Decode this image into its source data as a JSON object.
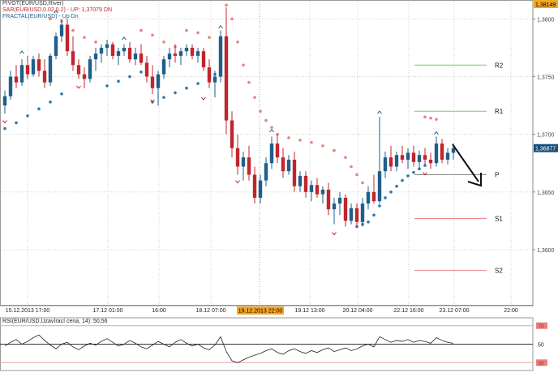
{
  "legend": {
    "pivot": "PIVOT(EUR/USD,River)",
    "sar": "SAR(EUR/USD,0.02,0.2) - UP: 1,37079  DN",
    "fractal": "FRACTAL(EUR/USD) - Up  Dn"
  },
  "colors": {
    "bull": "#1f5f8b",
    "bear": "#c0262c",
    "sar_up": "#2b7aa8",
    "sar_dn": "#e8837f",
    "r_line": "#6fcf6f",
    "s_line": "#e88888",
    "grid": "#d0d0d0",
    "highlight_bg": "#f5a623",
    "price_box": "#1a4f7a",
    "arrow": "#111111"
  },
  "rsi": {
    "label": "RSI(EUR/USD,Uzavírací cena, 14): 50,56",
    "levels": [
      "70",
      "50",
      "30"
    ]
  },
  "chart_data": {
    "type": "candlestick",
    "ylim": [
      1.3555,
      1.3815
    ],
    "y_ticks": [
      {
        "value": 1.3814,
        "label": "1,38149"
      },
      {
        "value": 1.38,
        "label": "1,3800"
      },
      {
        "value": 1.375,
        "label": "1,3750"
      },
      {
        "value": 1.37,
        "label": "1,3700"
      },
      {
        "value": 1.3688,
        "label": "1,36877"
      },
      {
        "value": 1.365,
        "label": "1,3650"
      },
      {
        "value": 1.36,
        "label": "1,3600"
      }
    ],
    "current_price_label": "1,36877",
    "top_price_label": "1,38149",
    "x_labels": [
      "15.12.2013 17:00",
      "17.12 01:00",
      "16:00",
      "18.12 07:00",
      "19.12 13:00",
      "20.12 04:00",
      "22.12 16:00",
      "23.12 07:00",
      "22:00"
    ],
    "highlighted_x_label": "19.12.2013 22:00",
    "pivot_levels": [
      {
        "name": "R2",
        "value": 1.376
      },
      {
        "name": "R1",
        "value": 1.372
      },
      {
        "name": "P",
        "value": 1.3665
      },
      {
        "name": "S1",
        "value": 1.3627
      },
      {
        "name": "S2",
        "value": 1.3582
      }
    ],
    "candles": [
      [
        1.3725,
        1.3738,
        1.3718,
        1.3733
      ],
      [
        1.3733,
        1.3755,
        1.373,
        1.375
      ],
      [
        1.375,
        1.376,
        1.374,
        1.3745
      ],
      [
        1.3745,
        1.3765,
        1.3742,
        1.376
      ],
      [
        1.376,
        1.3768,
        1.3748,
        1.3752
      ],
      [
        1.3752,
        1.3768,
        1.375,
        1.3765
      ],
      [
        1.3765,
        1.377,
        1.375,
        1.3755
      ],
      [
        1.3755,
        1.3765,
        1.374,
        1.3745
      ],
      [
        1.3745,
        1.377,
        1.3742,
        1.3768
      ],
      [
        1.3768,
        1.3788,
        1.3765,
        1.3785
      ],
      [
        1.3785,
        1.38,
        1.378,
        1.3795
      ],
      [
        1.3795,
        1.38,
        1.3768,
        1.3772
      ],
      [
        1.3772,
        1.3785,
        1.3755,
        1.376
      ],
      [
        1.376,
        1.3765,
        1.3748,
        1.3752
      ],
      [
        1.3752,
        1.3758,
        1.374,
        1.3748
      ],
      [
        1.3748,
        1.3768,
        1.3745,
        1.3765
      ],
      [
        1.3765,
        1.3775,
        1.3755,
        1.377
      ],
      [
        1.377,
        1.3778,
        1.3762,
        1.3775
      ],
      [
        1.3775,
        1.3782,
        1.3768,
        1.3778
      ],
      [
        1.3778,
        1.378,
        1.3765,
        1.3768
      ],
      [
        1.3768,
        1.3775,
        1.376,
        1.3772
      ],
      [
        1.3772,
        1.3778,
        1.3768,
        1.3775
      ],
      [
        1.3775,
        1.378,
        1.3762,
        1.3765
      ],
      [
        1.3765,
        1.3775,
        1.376,
        1.377
      ],
      [
        1.377,
        1.3778,
        1.376,
        1.3762
      ],
      [
        1.3762,
        1.3768,
        1.3745,
        1.375
      ],
      [
        1.375,
        1.376,
        1.3735,
        1.374
      ],
      [
        1.374,
        1.3755,
        1.3725,
        1.3752
      ],
      [
        1.3752,
        1.3768,
        1.3748,
        1.3765
      ],
      [
        1.3765,
        1.3775,
        1.3758,
        1.377
      ],
      [
        1.377,
        1.3778,
        1.3762,
        1.3768
      ],
      [
        1.3768,
        1.3775,
        1.376,
        1.3772
      ],
      [
        1.3772,
        1.3778,
        1.3768,
        1.3775
      ],
      [
        1.3775,
        1.3778,
        1.3765,
        1.3768
      ],
      [
        1.3768,
        1.3775,
        1.3762,
        1.3772
      ],
      [
        1.3772,
        1.3775,
        1.3755,
        1.3758
      ],
      [
        1.3758,
        1.3765,
        1.374,
        1.3745
      ],
      [
        1.3745,
        1.3755,
        1.3732,
        1.375
      ],
      [
        1.375,
        1.379,
        1.3745,
        1.3785
      ],
      [
        1.3785,
        1.381,
        1.37,
        1.3712
      ],
      [
        1.3712,
        1.372,
        1.368,
        1.3688
      ],
      [
        1.3688,
        1.37,
        1.3665,
        1.3672
      ],
      [
        1.3672,
        1.3685,
        1.366,
        1.368
      ],
      [
        1.368,
        1.369,
        1.366,
        1.3665
      ],
      [
        1.3665,
        1.3672,
        1.364,
        1.3645
      ],
      [
        1.3645,
        1.3665,
        1.364,
        1.366
      ],
      [
        1.366,
        1.368,
        1.3655,
        1.3675
      ],
      [
        1.3675,
        1.3698,
        1.367,
        1.3692
      ],
      [
        1.3692,
        1.37,
        1.3675,
        1.368
      ],
      [
        1.368,
        1.3688,
        1.3662,
        1.3668
      ],
      [
        1.3668,
        1.3682,
        1.3665,
        1.3678
      ],
      [
        1.3678,
        1.3685,
        1.365,
        1.3655
      ],
      [
        1.3655,
        1.3668,
        1.365,
        1.3664
      ],
      [
        1.3664,
        1.3668,
        1.3645,
        1.365
      ],
      [
        1.365,
        1.366,
        1.3642,
        1.3656
      ],
      [
        1.3656,
        1.3662,
        1.3645,
        1.3648
      ],
      [
        1.3648,
        1.3655,
        1.364,
        1.3652
      ],
      [
        1.3652,
        1.3658,
        1.363,
        1.3635
      ],
      [
        1.3635,
        1.3645,
        1.3622,
        1.364
      ],
      [
        1.364,
        1.365,
        1.363,
        1.3645
      ],
      [
        1.3645,
        1.3648,
        1.362,
        1.3625
      ],
      [
        1.3625,
        1.364,
        1.3622,
        1.3636
      ],
      [
        1.3636,
        1.364,
        1.362,
        1.3624
      ],
      [
        1.3624,
        1.3645,
        1.362,
        1.364
      ],
      [
        1.364,
        1.3655,
        1.3635,
        1.365
      ],
      [
        1.365,
        1.3665,
        1.364,
        1.3642
      ],
      [
        1.3642,
        1.3715,
        1.364,
        1.3668
      ],
      [
        1.3668,
        1.3685,
        1.3662,
        1.368
      ],
      [
        1.368,
        1.369,
        1.3668,
        1.3672
      ],
      [
        1.3672,
        1.3685,
        1.3668,
        1.3682
      ],
      [
        1.3682,
        1.369,
        1.3675,
        1.3678
      ],
      [
        1.3678,
        1.3688,
        1.367,
        1.3684
      ],
      [
        1.3684,
        1.369,
        1.3672,
        1.3676
      ],
      [
        1.3676,
        1.3686,
        1.367,
        1.3682
      ],
      [
        1.3682,
        1.3688,
        1.3674,
        1.3678
      ],
      [
        1.3678,
        1.3684,
        1.367,
        1.3675
      ],
      [
        1.3675,
        1.3698,
        1.3672,
        1.3692
      ],
      [
        1.3692,
        1.3696,
        1.3675,
        1.3678
      ],
      [
        1.3678,
        1.3688,
        1.3674,
        1.3684
      ],
      [
        1.3684,
        1.3692,
        1.3678,
        1.3688
      ]
    ],
    "sar_up": [
      [
        0,
        1.3705
      ],
      [
        2,
        1.371
      ],
      [
        4,
        1.3716
      ],
      [
        6,
        1.3722
      ],
      [
        8,
        1.3728
      ],
      [
        10,
        1.3735
      ],
      [
        18,
        1.3742
      ],
      [
        20,
        1.3746
      ],
      [
        22,
        1.375
      ],
      [
        24,
        1.3754
      ],
      [
        26,
        1.3728
      ],
      [
        28,
        1.3732
      ],
      [
        30,
        1.3736
      ],
      [
        32,
        1.374
      ],
      [
        34,
        1.3744
      ],
      [
        36,
        1.3748
      ],
      [
        37,
        1.3752
      ],
      [
        62,
        1.362
      ],
      [
        63,
        1.3622
      ],
      [
        64,
        1.3624
      ],
      [
        65,
        1.363
      ],
      [
        66,
        1.3638
      ],
      [
        67,
        1.3645
      ],
      [
        68,
        1.365
      ],
      [
        69,
        1.3655
      ],
      [
        70,
        1.366
      ],
      [
        71,
        1.3664
      ],
      [
        72,
        1.3667
      ],
      [
        73,
        1.367
      ],
      [
        74,
        1.3673
      ],
      [
        75,
        1.3676
      ],
      [
        76,
        1.3679
      ],
      [
        77,
        1.3682
      ]
    ],
    "sar_dn": [
      [
        8,
        1.38
      ],
      [
        10,
        1.3798
      ],
      [
        12,
        1.379
      ],
      [
        14,
        1.3784
      ],
      [
        16,
        1.378
      ],
      [
        24,
        1.379
      ],
      [
        26,
        1.3786
      ],
      [
        28,
        1.378
      ],
      [
        30,
        1.3776
      ],
      [
        32,
        1.379
      ],
      [
        34,
        1.3788
      ],
      [
        36,
        1.3784
      ],
      [
        39,
        1.3812
      ],
      [
        40,
        1.38
      ],
      [
        41,
        1.378
      ],
      [
        42,
        1.376
      ],
      [
        43,
        1.3745
      ],
      [
        44,
        1.3732
      ],
      [
        45,
        1.372
      ],
      [
        46,
        1.3712
      ],
      [
        47,
        1.3706
      ],
      [
        48,
        1.37
      ],
      [
        50,
        1.3697
      ],
      [
        52,
        1.3695
      ],
      [
        54,
        1.3693
      ],
      [
        56,
        1.369
      ],
      [
        58,
        1.3686
      ],
      [
        60,
        1.368
      ],
      [
        61,
        1.3672
      ],
      [
        62,
        1.3665
      ],
      [
        63,
        1.3658
      ],
      [
        74,
        1.3715
      ],
      [
        75,
        1.3714
      ],
      [
        76,
        1.3713
      ]
    ],
    "fractal_up": [
      [
        3,
        1.377
      ],
      [
        9,
        1.3805
      ],
      [
        21,
        1.3782
      ],
      [
        38,
        1.3792
      ],
      [
        47,
        1.3702
      ],
      [
        66,
        1.3718
      ],
      [
        76,
        1.37
      ]
    ],
    "fractal_dn": [
      [
        0,
        1.3712
      ],
      [
        13,
        1.3742
      ],
      [
        26,
        1.373
      ],
      [
        35,
        1.3732
      ],
      [
        41,
        1.366
      ],
      [
        58,
        1.3615
      ],
      [
        74,
        1.3667
      ]
    ],
    "rsi_values": [
      48,
      52,
      55,
      50,
      53,
      57,
      60,
      54,
      49,
      45,
      50,
      52,
      47,
      44,
      48,
      51,
      49,
      53,
      56,
      52,
      48,
      50,
      54,
      51,
      47,
      45,
      49,
      53,
      50,
      47,
      52,
      55,
      51,
      48,
      50,
      46,
      44,
      49,
      58,
      42,
      32,
      30,
      33,
      36,
      38,
      40,
      43,
      45,
      41,
      39,
      43,
      45,
      42,
      40,
      43,
      41,
      44,
      46,
      42,
      44,
      46,
      43,
      45,
      48,
      50,
      47,
      58,
      55,
      52,
      54,
      53,
      55,
      52,
      54,
      53,
      51,
      57,
      54,
      52,
      51
    ]
  }
}
